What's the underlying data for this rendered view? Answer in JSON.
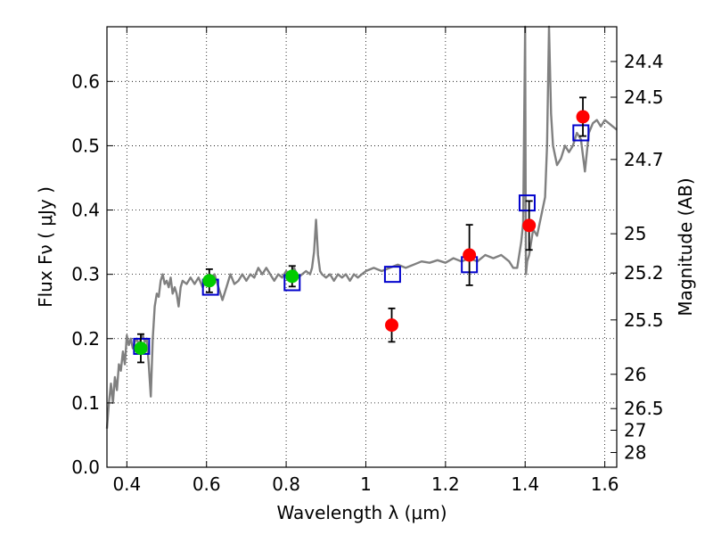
{
  "chart_data": {
    "type": "scatter",
    "xlabel": "Wavelength  λ (μm)",
    "ylabel": "Flux  Fν  ( μJy )",
    "y2label": "Magnitude (AB)",
    "xlim": [
      0.35,
      1.63
    ],
    "ylim": [
      0.0,
      0.685
    ],
    "x_ticks": [
      0.4,
      0.6,
      0.8,
      1.0,
      1.2,
      1.4,
      1.6
    ],
    "x_tick_labels": [
      "0.4",
      "0.6",
      "0.8",
      "1",
      "1.2",
      "1.4",
      "1.6"
    ],
    "y_ticks": [
      0.0,
      0.1,
      0.2,
      0.3,
      0.4,
      0.5,
      0.6
    ],
    "y_tick_labels": [
      "0.0",
      "0.1",
      "0.2",
      "0.3",
      "0.4",
      "0.5",
      "0.6"
    ],
    "mag_ticks": [
      {
        "label": "24.4",
        "mag": 24.4
      },
      {
        "label": "24.5",
        "mag": 24.5
      },
      {
        "label": "24.7",
        "mag": 24.7
      },
      {
        "label": "25",
        "mag": 25.0
      },
      {
        "label": "25.2",
        "mag": 25.2
      },
      {
        "label": "25.5",
        "mag": 25.5
      },
      {
        "label": "26",
        "mag": 26.0
      },
      {
        "label": "26.5",
        "mag": 26.5
      },
      {
        "label": "27",
        "mag": 27.0
      },
      {
        "label": "28",
        "mag": 28.0
      }
    ],
    "grid": true,
    "series": [
      {
        "kind": "line",
        "color": "#808080",
        "points": [
          [
            0.35,
            0.06
          ],
          [
            0.355,
            0.1
          ],
          [
            0.36,
            0.13
          ],
          [
            0.365,
            0.1
          ],
          [
            0.37,
            0.14
          ],
          [
            0.375,
            0.12
          ],
          [
            0.38,
            0.16
          ],
          [
            0.385,
            0.15
          ],
          [
            0.39,
            0.18
          ],
          [
            0.395,
            0.16
          ],
          [
            0.4,
            0.205
          ],
          [
            0.405,
            0.19
          ],
          [
            0.41,
            0.2
          ],
          [
            0.415,
            0.185
          ],
          [
            0.42,
            0.195
          ],
          [
            0.425,
            0.2
          ],
          [
            0.43,
            0.19
          ],
          [
            0.435,
            0.2
          ],
          [
            0.44,
            0.205
          ],
          [
            0.445,
            0.195
          ],
          [
            0.45,
            0.2
          ],
          [
            0.455,
            0.16
          ],
          [
            0.46,
            0.11
          ],
          [
            0.465,
            0.2
          ],
          [
            0.47,
            0.25
          ],
          [
            0.475,
            0.27
          ],
          [
            0.48,
            0.265
          ],
          [
            0.485,
            0.29
          ],
          [
            0.49,
            0.3
          ],
          [
            0.495,
            0.285
          ],
          [
            0.5,
            0.29
          ],
          [
            0.505,
            0.28
          ],
          [
            0.51,
            0.295
          ],
          [
            0.515,
            0.27
          ],
          [
            0.52,
            0.28
          ],
          [
            0.525,
            0.27
          ],
          [
            0.53,
            0.25
          ],
          [
            0.535,
            0.28
          ],
          [
            0.54,
            0.29
          ],
          [
            0.55,
            0.285
          ],
          [
            0.56,
            0.295
          ],
          [
            0.57,
            0.285
          ],
          [
            0.58,
            0.295
          ],
          [
            0.59,
            0.28
          ],
          [
            0.6,
            0.29
          ],
          [
            0.61,
            0.295
          ],
          [
            0.62,
            0.3
          ],
          [
            0.63,
            0.28
          ],
          [
            0.64,
            0.26
          ],
          [
            0.65,
            0.28
          ],
          [
            0.66,
            0.3
          ],
          [
            0.67,
            0.285
          ],
          [
            0.68,
            0.29
          ],
          [
            0.69,
            0.3
          ],
          [
            0.7,
            0.29
          ],
          [
            0.71,
            0.3
          ],
          [
            0.72,
            0.295
          ],
          [
            0.73,
            0.31
          ],
          [
            0.74,
            0.3
          ],
          [
            0.75,
            0.31
          ],
          [
            0.76,
            0.3
          ],
          [
            0.77,
            0.29
          ],
          [
            0.78,
            0.3
          ],
          [
            0.79,
            0.295
          ],
          [
            0.8,
            0.305
          ],
          [
            0.81,
            0.3
          ],
          [
            0.82,
            0.31
          ],
          [
            0.83,
            0.295
          ],
          [
            0.84,
            0.3
          ],
          [
            0.85,
            0.305
          ],
          [
            0.86,
            0.3
          ],
          [
            0.865,
            0.31
          ],
          [
            0.87,
            0.335
          ],
          [
            0.875,
            0.385
          ],
          [
            0.88,
            0.33
          ],
          [
            0.885,
            0.305
          ],
          [
            0.89,
            0.3
          ],
          [
            0.9,
            0.295
          ],
          [
            0.91,
            0.3
          ],
          [
            0.92,
            0.29
          ],
          [
            0.93,
            0.3
          ],
          [
            0.94,
            0.295
          ],
          [
            0.95,
            0.3
          ],
          [
            0.96,
            0.29
          ],
          [
            0.97,
            0.3
          ],
          [
            0.98,
            0.295
          ],
          [
            0.99,
            0.3
          ],
          [
            1.0,
            0.305
          ],
          [
            1.02,
            0.31
          ],
          [
            1.04,
            0.305
          ],
          [
            1.06,
            0.31
          ],
          [
            1.08,
            0.315
          ],
          [
            1.1,
            0.31
          ],
          [
            1.12,
            0.315
          ],
          [
            1.14,
            0.32
          ],
          [
            1.16,
            0.318
          ],
          [
            1.18,
            0.322
          ],
          [
            1.2,
            0.318
          ],
          [
            1.22,
            0.325
          ],
          [
            1.24,
            0.32
          ],
          [
            1.26,
            0.325
          ],
          [
            1.28,
            0.32
          ],
          [
            1.3,
            0.33
          ],
          [
            1.32,
            0.325
          ],
          [
            1.34,
            0.33
          ],
          [
            1.36,
            0.32
          ],
          [
            1.37,
            0.31
          ],
          [
            1.38,
            0.31
          ],
          [
            1.39,
            0.35
          ],
          [
            1.395,
            0.38
          ],
          [
            1.4,
            0.69
          ],
          [
            1.402,
            0.3
          ],
          [
            1.405,
            0.32
          ],
          [
            1.41,
            0.33
          ],
          [
            1.42,
            0.37
          ],
          [
            1.43,
            0.36
          ],
          [
            1.44,
            0.39
          ],
          [
            1.45,
            0.42
          ],
          [
            1.455,
            0.5
          ],
          [
            1.46,
            0.69
          ],
          [
            1.465,
            0.55
          ],
          [
            1.47,
            0.5
          ],
          [
            1.48,
            0.47
          ],
          [
            1.49,
            0.48
          ],
          [
            1.5,
            0.5
          ],
          [
            1.51,
            0.49
          ],
          [
            1.52,
            0.5
          ],
          [
            1.53,
            0.52
          ],
          [
            1.54,
            0.51
          ],
          [
            1.55,
            0.46
          ],
          [
            1.56,
            0.52
          ],
          [
            1.57,
            0.535
          ],
          [
            1.58,
            0.54
          ],
          [
            1.59,
            0.53
          ],
          [
            1.6,
            0.54
          ],
          [
            1.61,
            0.535
          ],
          [
            1.62,
            0.53
          ],
          [
            1.63,
            0.525
          ]
        ]
      },
      {
        "kind": "filled-circles",
        "color": "#00cc00",
        "points": [
          {
            "x": 0.435,
            "y": 0.185,
            "err": 0.022
          },
          {
            "x": 0.607,
            "y": 0.29,
            "err": 0.018
          },
          {
            "x": 0.815,
            "y": 0.297,
            "err": 0.016
          }
        ]
      },
      {
        "kind": "filled-circles",
        "color": "#ff0000",
        "points": [
          {
            "x": 1.065,
            "y": 0.221,
            "err": 0.026
          },
          {
            "x": 1.26,
            "y": 0.33,
            "err": 0.047
          },
          {
            "x": 1.41,
            "y": 0.376,
            "err": 0.038
          },
          {
            "x": 1.545,
            "y": 0.545,
            "err": 0.03
          }
        ]
      },
      {
        "kind": "open-squares",
        "color": "#0000cc",
        "points": [
          {
            "x": 0.437,
            "y": 0.188
          },
          {
            "x": 0.61,
            "y": 0.28
          },
          {
            "x": 0.815,
            "y": 0.287
          },
          {
            "x": 1.067,
            "y": 0.3
          },
          {
            "x": 1.26,
            "y": 0.315
          },
          {
            "x": 1.405,
            "y": 0.411
          },
          {
            "x": 1.54,
            "y": 0.52
          }
        ]
      }
    ]
  }
}
